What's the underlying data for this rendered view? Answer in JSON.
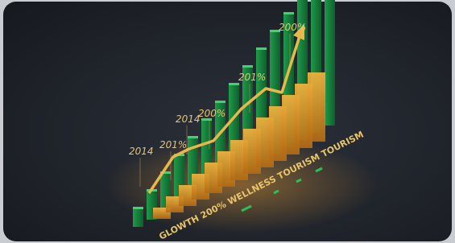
{
  "labels": [
    "2014",
    "201%",
    "2014",
    "200%",
    "201%",
    "200%"
  ],
  "caption": "GLOWTH 200% WELLNESS TOURISM TOURISM"
}
